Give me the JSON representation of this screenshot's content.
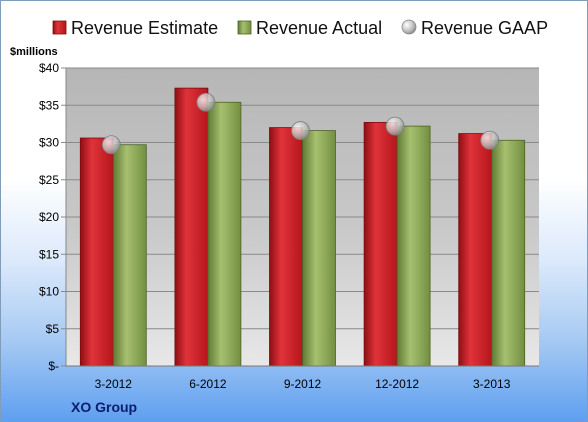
{
  "chart_data": {
    "type": "bar",
    "title": "",
    "ylabel": "$millions",
    "xlabel": "",
    "company": "XO Group",
    "categories": [
      "3-2012",
      "6-2012",
      "9-2012",
      "12-2012",
      "3-2013"
    ],
    "series": [
      {
        "name": "Revenue Estimate",
        "values": [
          30.6,
          37.3,
          32.0,
          32.7,
          31.2
        ],
        "color": "#d42027",
        "kind": "bar"
      },
      {
        "name": "Revenue Actual",
        "values": [
          29.7,
          35.4,
          31.6,
          32.2,
          30.3
        ],
        "color": "#8faa5a",
        "kind": "bar"
      },
      {
        "name": "Revenue GAAP",
        "values": [
          29.7,
          35.4,
          31.6,
          32.2,
          30.3
        ],
        "color": "#c8c8c8",
        "kind": "marker"
      }
    ],
    "ylim": [
      0,
      40
    ],
    "yticks": [
      0,
      5,
      10,
      15,
      20,
      25,
      30,
      35,
      40
    ],
    "ytick_labels": [
      "$-",
      "$5",
      "$10",
      "$15",
      "$20",
      "$25",
      "$30",
      "$35",
      "$40"
    ],
    "grid": true,
    "legend": "top"
  }
}
